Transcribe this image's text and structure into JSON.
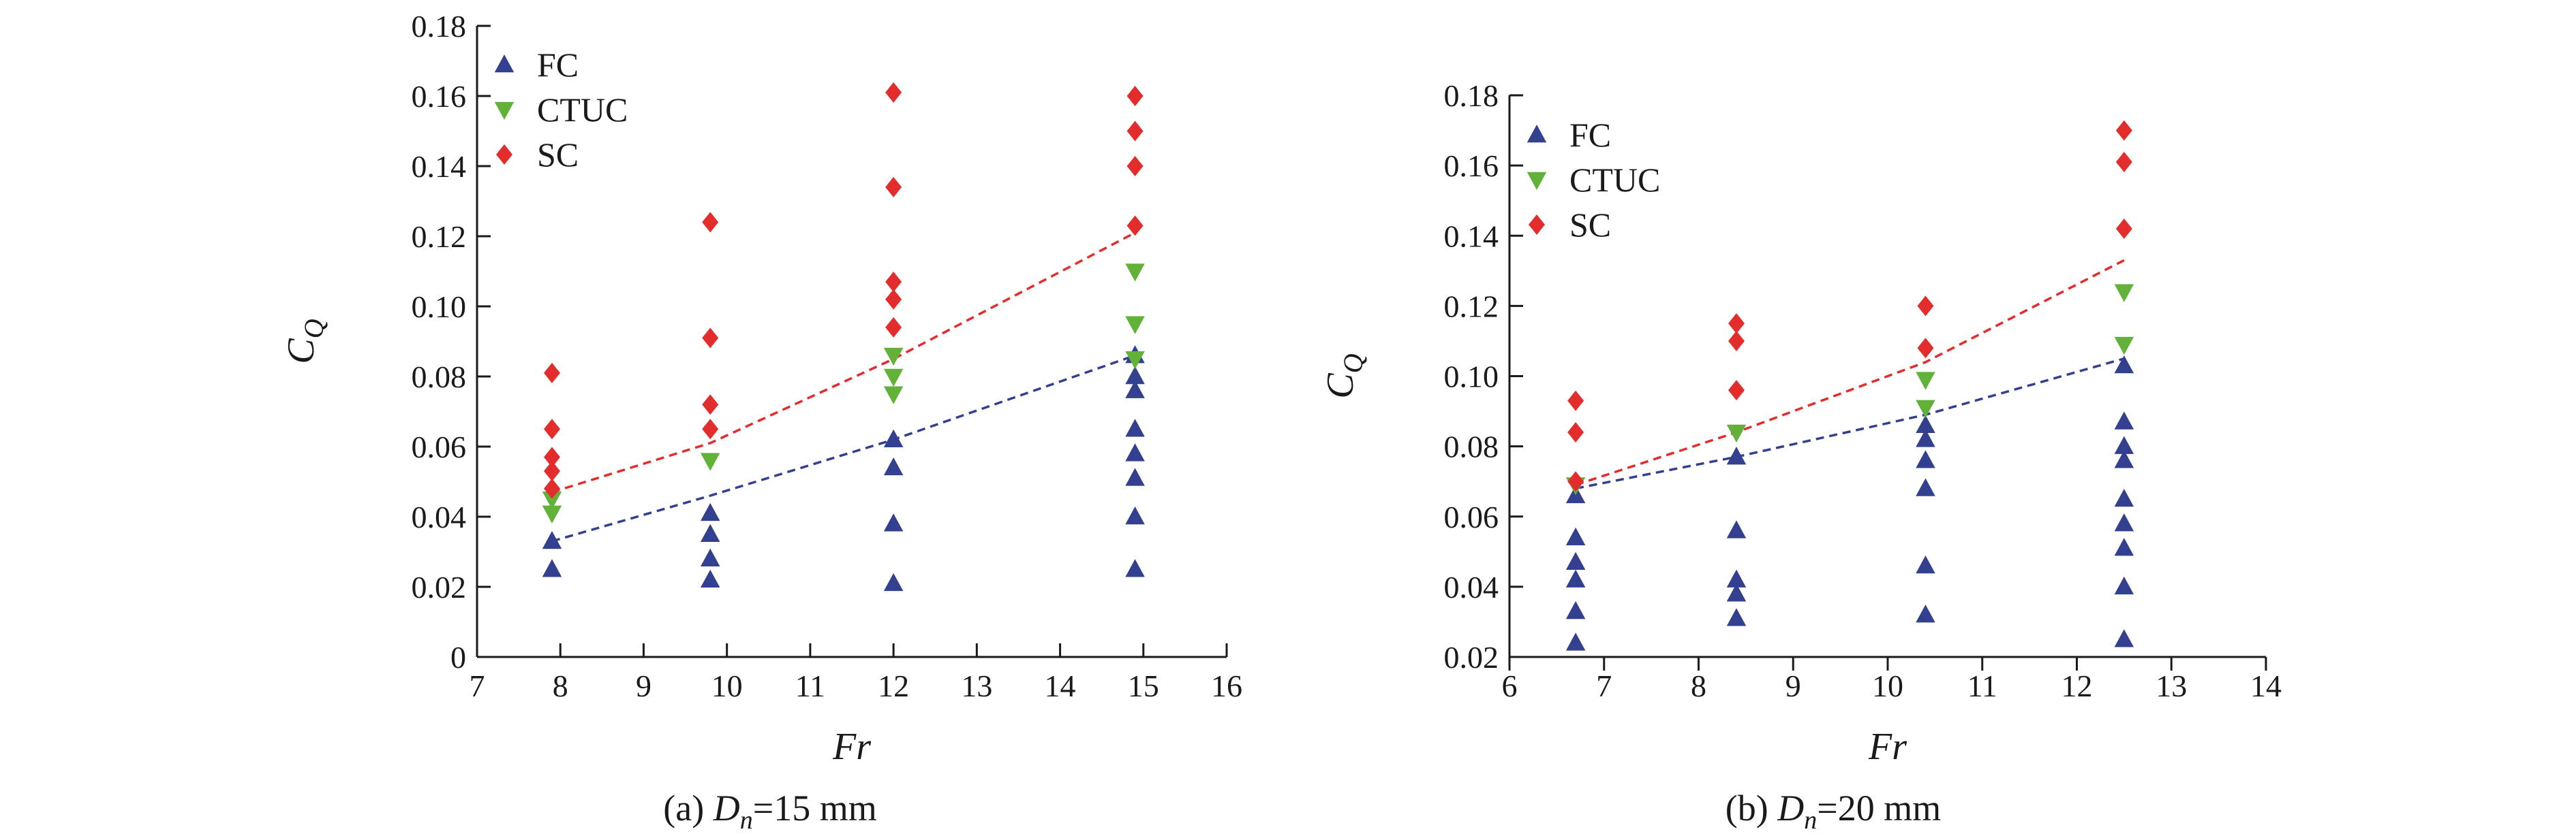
{
  "chart_data": [
    {
      "type": "scatter",
      "caption": {
        "prefix": "(a) ",
        "var_main": "D",
        "var_sub": "n",
        "suffix": "=15 mm"
      },
      "xlabel": "Fr",
      "ylabel": {
        "main": "C",
        "sub": "Q"
      },
      "xlim": [
        7,
        16
      ],
      "ylim": [
        0,
        0.18
      ],
      "xticks": [
        "7",
        "8",
        "9",
        "10",
        "11",
        "12",
        "13",
        "14",
        "15",
        "16"
      ],
      "yticks": [
        "0",
        "0.02",
        "0.04",
        "0.06",
        "0.08",
        "0.10",
        "0.12",
        "0.14",
        "0.16",
        "0.18"
      ],
      "legend_position": "top-left",
      "series": [
        {
          "name": "FC",
          "marker": "triangle-up",
          "color": "#33408f",
          "points": [
            [
              7.9,
              0.025
            ],
            [
              7.9,
              0.033
            ],
            [
              9.8,
              0.022
            ],
            [
              9.8,
              0.028
            ],
            [
              9.8,
              0.035
            ],
            [
              9.8,
              0.041
            ],
            [
              12.0,
              0.021
            ],
            [
              12.0,
              0.038
            ],
            [
              12.0,
              0.054
            ],
            [
              12.0,
              0.062
            ],
            [
              14.9,
              0.025
            ],
            [
              14.9,
              0.04
            ],
            [
              14.9,
              0.051
            ],
            [
              14.9,
              0.058
            ],
            [
              14.9,
              0.065
            ],
            [
              14.9,
              0.076
            ],
            [
              14.9,
              0.08
            ],
            [
              14.9,
              0.086
            ]
          ]
        },
        {
          "name": "CTUC",
          "marker": "triangle-down",
          "color": "#62b139",
          "points": [
            [
              7.9,
              0.041
            ],
            [
              7.9,
              0.045
            ],
            [
              9.8,
              0.056
            ],
            [
              12.0,
              0.075
            ],
            [
              12.0,
              0.08
            ],
            [
              12.0,
              0.086
            ],
            [
              14.9,
              0.085
            ],
            [
              14.9,
              0.095
            ],
            [
              14.9,
              0.11
            ]
          ]
        },
        {
          "name": "SC",
          "marker": "diamond",
          "color": "#e32d2d",
          "points": [
            [
              7.9,
              0.048
            ],
            [
              7.9,
              0.053
            ],
            [
              7.9,
              0.057
            ],
            [
              7.9,
              0.065
            ],
            [
              7.9,
              0.081
            ],
            [
              9.8,
              0.065
            ],
            [
              9.8,
              0.072
            ],
            [
              9.8,
              0.091
            ],
            [
              9.8,
              0.124
            ],
            [
              12.0,
              0.094
            ],
            [
              12.0,
              0.102
            ],
            [
              12.0,
              0.107
            ],
            [
              12.0,
              0.134
            ],
            [
              12.0,
              0.161
            ],
            [
              14.9,
              0.123
            ],
            [
              14.9,
              0.14
            ],
            [
              14.9,
              0.15
            ],
            [
              14.9,
              0.16
            ]
          ]
        }
      ],
      "trend_lines": [
        {
          "color": "#33408f",
          "points": [
            [
              7.9,
              0.033
            ],
            [
              9.8,
              0.046
            ],
            [
              12.0,
              0.062
            ],
            [
              14.9,
              0.086
            ]
          ]
        },
        {
          "color": "#e32d2d",
          "points": [
            [
              7.9,
              0.047
            ],
            [
              9.8,
              0.061
            ],
            [
              12.0,
              0.085
            ],
            [
              14.9,
              0.121
            ]
          ]
        }
      ]
    },
    {
      "type": "scatter",
      "caption": {
        "prefix": "(b) ",
        "var_main": "D",
        "var_sub": "n",
        "suffix": "=20 mm"
      },
      "xlabel": "Fr",
      "ylabel": {
        "main": "C",
        "sub": "Q"
      },
      "xlim": [
        6,
        14
      ],
      "ylim": [
        0.02,
        0.18
      ],
      "xticks": [
        "6",
        "7",
        "8",
        "9",
        "10",
        "11",
        "12",
        "13",
        "14"
      ],
      "yticks": [
        "0.02",
        "0.04",
        "0.06",
        "0.08",
        "0.10",
        "0.12",
        "0.14",
        "0.16",
        "0.18"
      ],
      "legend_position": "top-left",
      "series": [
        {
          "name": "FC",
          "marker": "triangle-up",
          "color": "#33408f",
          "points": [
            [
              6.7,
              0.024
            ],
            [
              6.7,
              0.033
            ],
            [
              6.7,
              0.042
            ],
            [
              6.7,
              0.047
            ],
            [
              6.7,
              0.054
            ],
            [
              6.7,
              0.066
            ],
            [
              8.4,
              0.031
            ],
            [
              8.4,
              0.038
            ],
            [
              8.4,
              0.042
            ],
            [
              8.4,
              0.056
            ],
            [
              8.4,
              0.077
            ],
            [
              10.4,
              0.032
            ],
            [
              10.4,
              0.046
            ],
            [
              10.4,
              0.068
            ],
            [
              10.4,
              0.076
            ],
            [
              10.4,
              0.082
            ],
            [
              10.4,
              0.086
            ],
            [
              12.5,
              0.025
            ],
            [
              12.5,
              0.04
            ],
            [
              12.5,
              0.051
            ],
            [
              12.5,
              0.058
            ],
            [
              12.5,
              0.065
            ],
            [
              12.5,
              0.076
            ],
            [
              12.5,
              0.08
            ],
            [
              12.5,
              0.087
            ],
            [
              12.5,
              0.103
            ]
          ]
        },
        {
          "name": "CTUC",
          "marker": "triangle-down",
          "color": "#62b139",
          "points": [
            [
              6.7,
              0.069
            ],
            [
              8.4,
              0.084
            ],
            [
              10.4,
              0.091
            ],
            [
              10.4,
              0.099
            ],
            [
              12.5,
              0.109
            ],
            [
              12.5,
              0.124
            ]
          ]
        },
        {
          "name": "SC",
          "marker": "diamond",
          "color": "#e32d2d",
          "points": [
            [
              6.7,
              0.07
            ],
            [
              6.7,
              0.084
            ],
            [
              6.7,
              0.093
            ],
            [
              8.4,
              0.096
            ],
            [
              8.4,
              0.11
            ],
            [
              8.4,
              0.115
            ],
            [
              10.4,
              0.108
            ],
            [
              10.4,
              0.12
            ],
            [
              12.5,
              0.142
            ],
            [
              12.5,
              0.161
            ],
            [
              12.5,
              0.17
            ]
          ]
        }
      ],
      "trend_lines": [
        {
          "color": "#33408f",
          "points": [
            [
              6.7,
              0.068
            ],
            [
              8.4,
              0.077
            ],
            [
              10.4,
              0.089
            ],
            [
              12.5,
              0.105
            ]
          ]
        },
        {
          "color": "#e32d2d",
          "points": [
            [
              6.7,
              0.069
            ],
            [
              8.4,
              0.084
            ],
            [
              10.4,
              0.104
            ],
            [
              12.5,
              0.133
            ]
          ]
        }
      ]
    }
  ]
}
